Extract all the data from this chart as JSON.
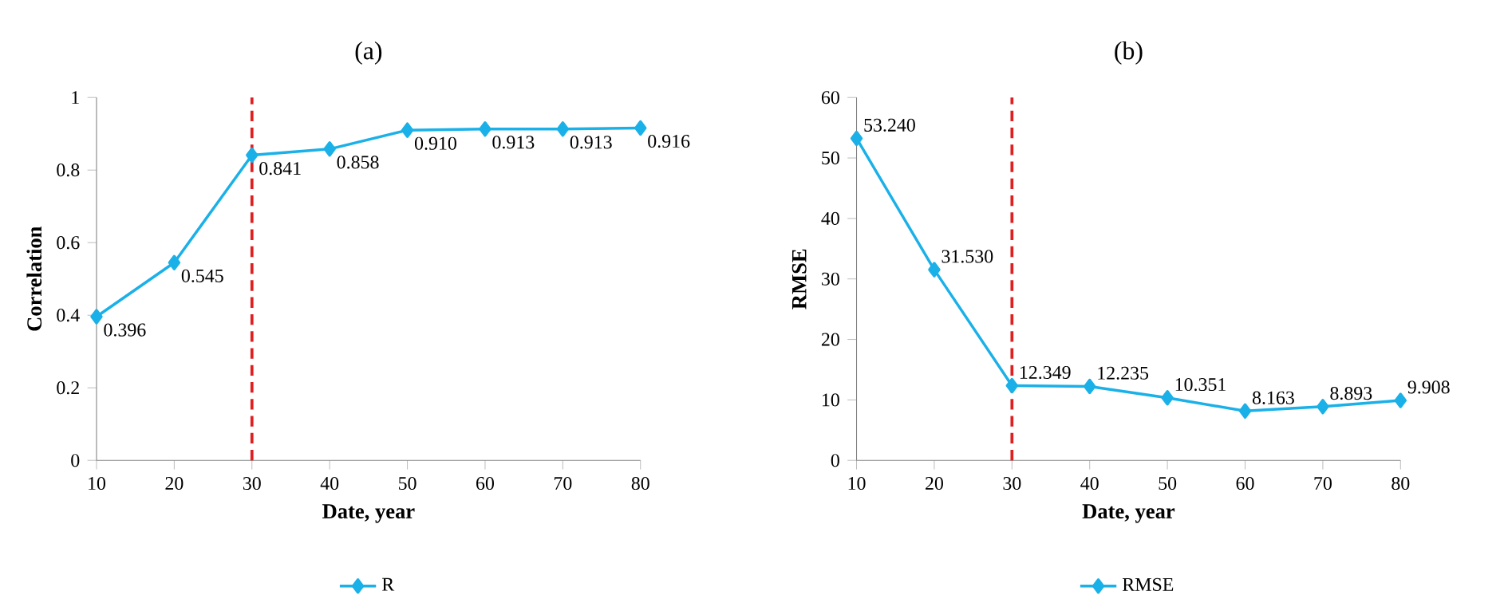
{
  "chart_data": [
    {
      "type": "line",
      "title": "(a)",
      "xlabel": "Date, year",
      "ylabel": "Correlation",
      "x": [
        10,
        20,
        30,
        40,
        50,
        60,
        70,
        80
      ],
      "xlim": [
        10,
        80
      ],
      "xticks": [
        10,
        20,
        30,
        40,
        50,
        60,
        70,
        80
      ],
      "ylim": [
        0,
        1
      ],
      "yticks": [
        0,
        0.2,
        0.4,
        0.6,
        0.8,
        1
      ],
      "series": [
        {
          "name": "R",
          "color": "#1ab0e8",
          "values": [
            0.396,
            0.545,
            0.841,
            0.858,
            0.91,
            0.913,
            0.913,
            0.916
          ],
          "value_labels": [
            "0.396",
            "0.545",
            "0.841",
            "0.858",
            "0.910",
            "0.913",
            "0.913",
            "0.916"
          ]
        }
      ],
      "ref_lines": [
        {
          "axis": "x",
          "value": 30,
          "color": "#e02020",
          "line_style": "dashed"
        }
      ],
      "marker": "diamond",
      "legend": "bottom"
    },
    {
      "type": "line",
      "title": "(b)",
      "xlabel": "Date, year",
      "ylabel": "RMSE",
      "x": [
        10,
        20,
        30,
        40,
        50,
        60,
        70,
        80
      ],
      "xlim": [
        10,
        80
      ],
      "xticks": [
        10,
        20,
        30,
        40,
        50,
        60,
        70,
        80
      ],
      "ylim": [
        0,
        60
      ],
      "yticks": [
        0,
        10,
        20,
        30,
        40,
        50,
        60
      ],
      "series": [
        {
          "name": "RMSE",
          "color": "#1ab0e8",
          "values": [
            53.24,
            31.53,
            12.349,
            12.235,
            10.351,
            8.163,
            8.893,
            9.908
          ],
          "value_labels": [
            "53.240",
            "31.530",
            "12.349",
            "12.235",
            "10.351",
            "8.163",
            "8.893",
            "9.908"
          ]
        }
      ],
      "ref_lines": [
        {
          "axis": "x",
          "value": 30,
          "color": "#e02020",
          "line_style": "dashed"
        }
      ],
      "marker": "diamond",
      "legend": "bottom"
    }
  ]
}
